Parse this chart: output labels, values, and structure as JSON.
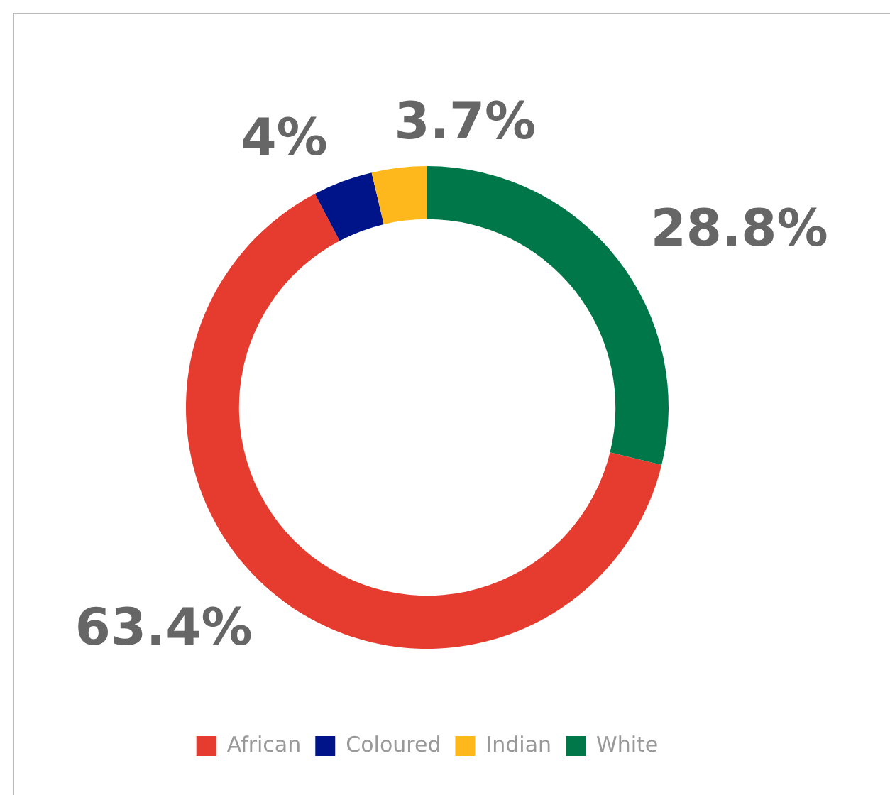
{
  "chart_data": {
    "type": "donut",
    "categories": [
      "African",
      "Coloured",
      "Indian",
      "White"
    ],
    "values": [
      63.4,
      4,
      3.7,
      28.8
    ],
    "colors": [
      "#e63c2f",
      "#001489",
      "#ffb81c",
      "#007749"
    ],
    "value_labels": [
      "63.4%",
      "4%",
      "3.7%",
      "28.8%"
    ],
    "legend": "bottom"
  }
}
